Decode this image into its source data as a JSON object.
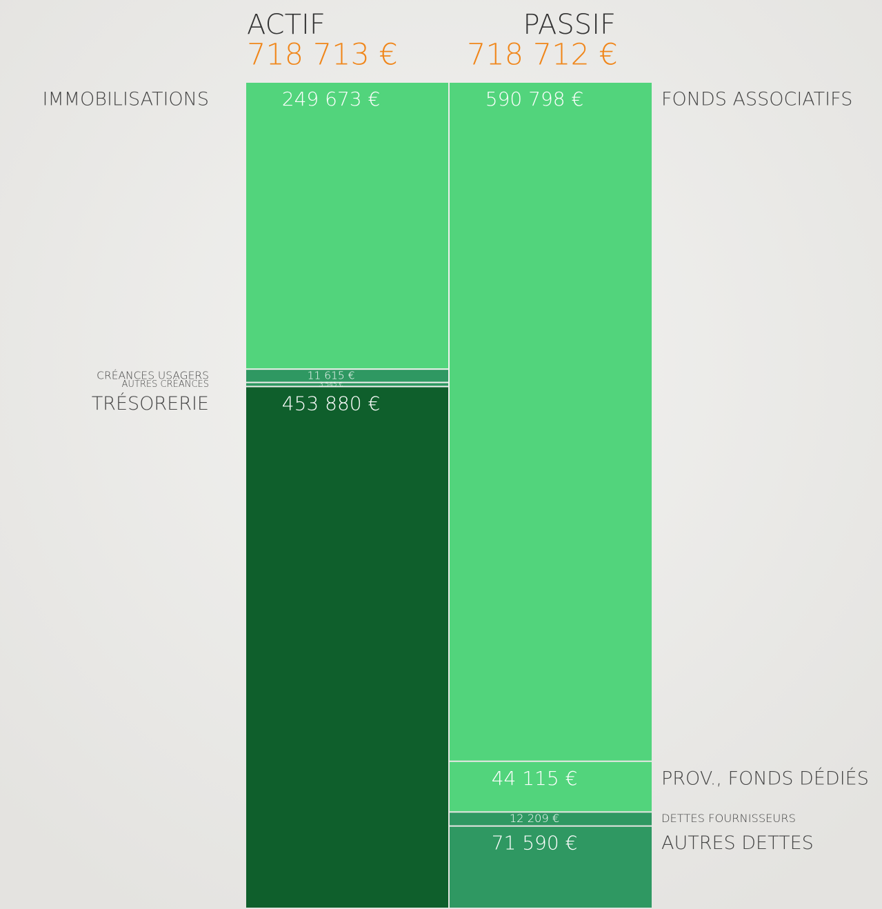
{
  "chart_data": {
    "type": "stacked-columns",
    "columns": [
      {
        "title": "ACTIF",
        "total": 718713,
        "total_label": "718 713 €",
        "label_side": "left",
        "segments": [
          {
            "name": "IMMOBILISATIONS",
            "value": 249673,
            "value_label": "249 673 €",
            "color": "#52d47c"
          },
          {
            "name": "CRÉANCES USAGERS",
            "value": 11615,
            "value_label": "11 615 €",
            "color": "#2f9862"
          },
          {
            "name": "AUTRES CRÉANCES",
            "value": 3545,
            "value_label": "3 545 €",
            "color": "#2f9862"
          },
          {
            "name": "TRÉSORERIE",
            "value": 453880,
            "value_label": "453 880 €",
            "color": "#0f5f2c"
          }
        ]
      },
      {
        "title": "PASSIF",
        "total": 718712,
        "total_label": "718 712 €",
        "label_side": "right",
        "segments": [
          {
            "name": "FONDS ASSOCIATIFS",
            "value": 590798,
            "value_label": "590 798 €",
            "color": "#52d47c"
          },
          {
            "name": "PROV., FONDS DÉDIÉS",
            "value": 44115,
            "value_label": "44 115 €",
            "color": "#52d47c"
          },
          {
            "name": "DETTES FOURNISSEURS",
            "value": 12209,
            "value_label": "12 209 €",
            "color": "#2f9862"
          },
          {
            "name": "AUTRES DETTES",
            "value": 71590,
            "value_label": "71 590 €",
            "color": "#2f9862"
          }
        ]
      }
    ]
  }
}
